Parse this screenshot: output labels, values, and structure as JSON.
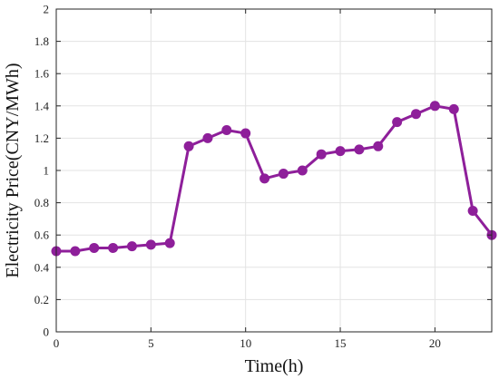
{
  "chart_data": {
    "type": "line",
    "xlabel": "Time(h)",
    "ylabel": "Electricity Price(CNY/MWh)",
    "xlim": [
      0,
      23
    ],
    "ylim": [
      0,
      2
    ],
    "xticks": [
      0,
      5,
      10,
      15,
      20
    ],
    "yticks": [
      0,
      0.2,
      0.4,
      0.6,
      0.8,
      1,
      1.2,
      1.4,
      1.6,
      1.8,
      2
    ],
    "grid": true,
    "series": [
      {
        "color": "#8e1f9a",
        "marker": "circle",
        "x": [
          0,
          1,
          2,
          3,
          4,
          5,
          6,
          7,
          8,
          9,
          10,
          11,
          12,
          13,
          14,
          15,
          16,
          17,
          18,
          19,
          20,
          21,
          22,
          23
        ],
        "values": [
          0.5,
          0.5,
          0.52,
          0.52,
          0.53,
          0.54,
          0.55,
          1.15,
          1.2,
          1.25,
          1.23,
          0.95,
          0.98,
          1.0,
          1.1,
          1.12,
          1.13,
          1.15,
          1.3,
          1.35,
          1.4,
          1.38,
          0.75,
          0.6
        ]
      }
    ]
  }
}
